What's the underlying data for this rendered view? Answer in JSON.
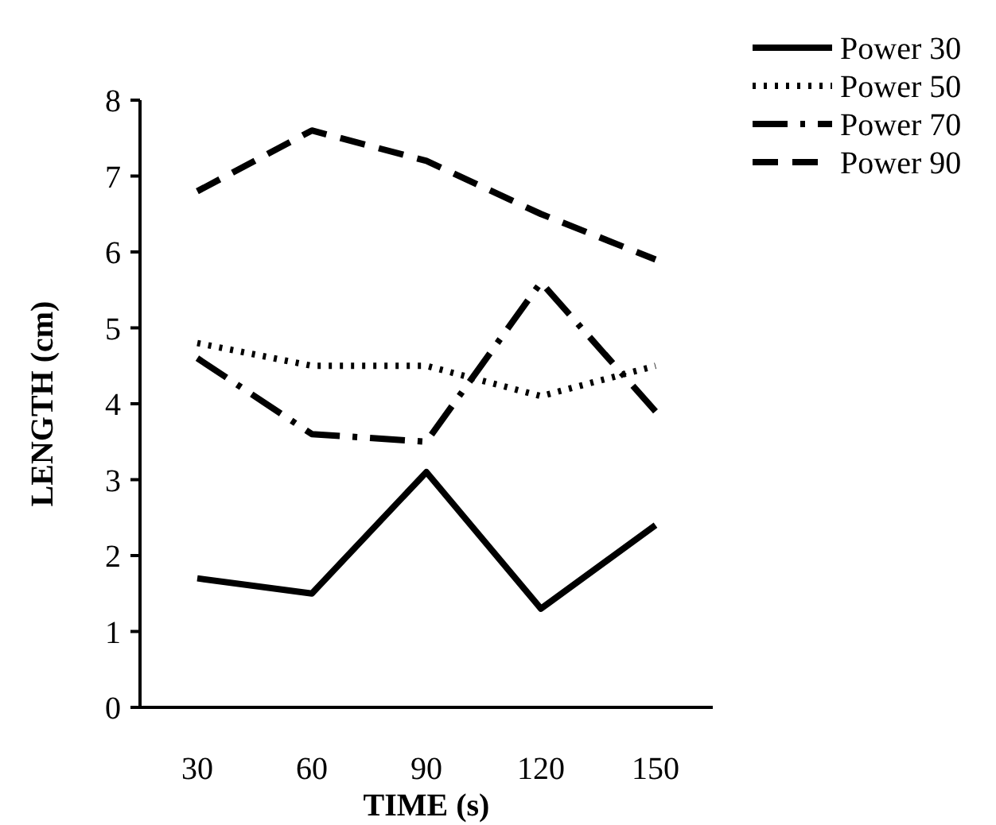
{
  "chart_data": {
    "type": "line",
    "xlabel": "TIME (s)",
    "ylabel": "LENGTH  (cm)",
    "categories": [
      "30",
      "60",
      "90",
      "120",
      "150"
    ],
    "ylim": [
      0,
      8
    ],
    "yticks": [
      0,
      1,
      2,
      3,
      4,
      5,
      6,
      7,
      8
    ],
    "grid": false,
    "legend": "top right",
    "marker": "none",
    "series": [
      {
        "name": "Power 30",
        "color": "#000000",
        "line_style": "solid",
        "values": [
          1.7,
          1.5,
          3.1,
          1.3,
          2.4
        ]
      },
      {
        "name": "Power 50",
        "color": "#000000",
        "line_style": "dotted",
        "values": [
          4.8,
          4.5,
          4.5,
          4.1,
          4.5
        ]
      },
      {
        "name": "Power 70",
        "color": "#000000",
        "line_style": "dashdot",
        "values": [
          4.6,
          3.6,
          3.5,
          5.6,
          3.9
        ]
      },
      {
        "name": "Power 90",
        "color": "#000000",
        "line_style": "dashed",
        "values": [
          6.8,
          7.6,
          7.2,
          6.5,
          5.9
        ]
      }
    ]
  }
}
